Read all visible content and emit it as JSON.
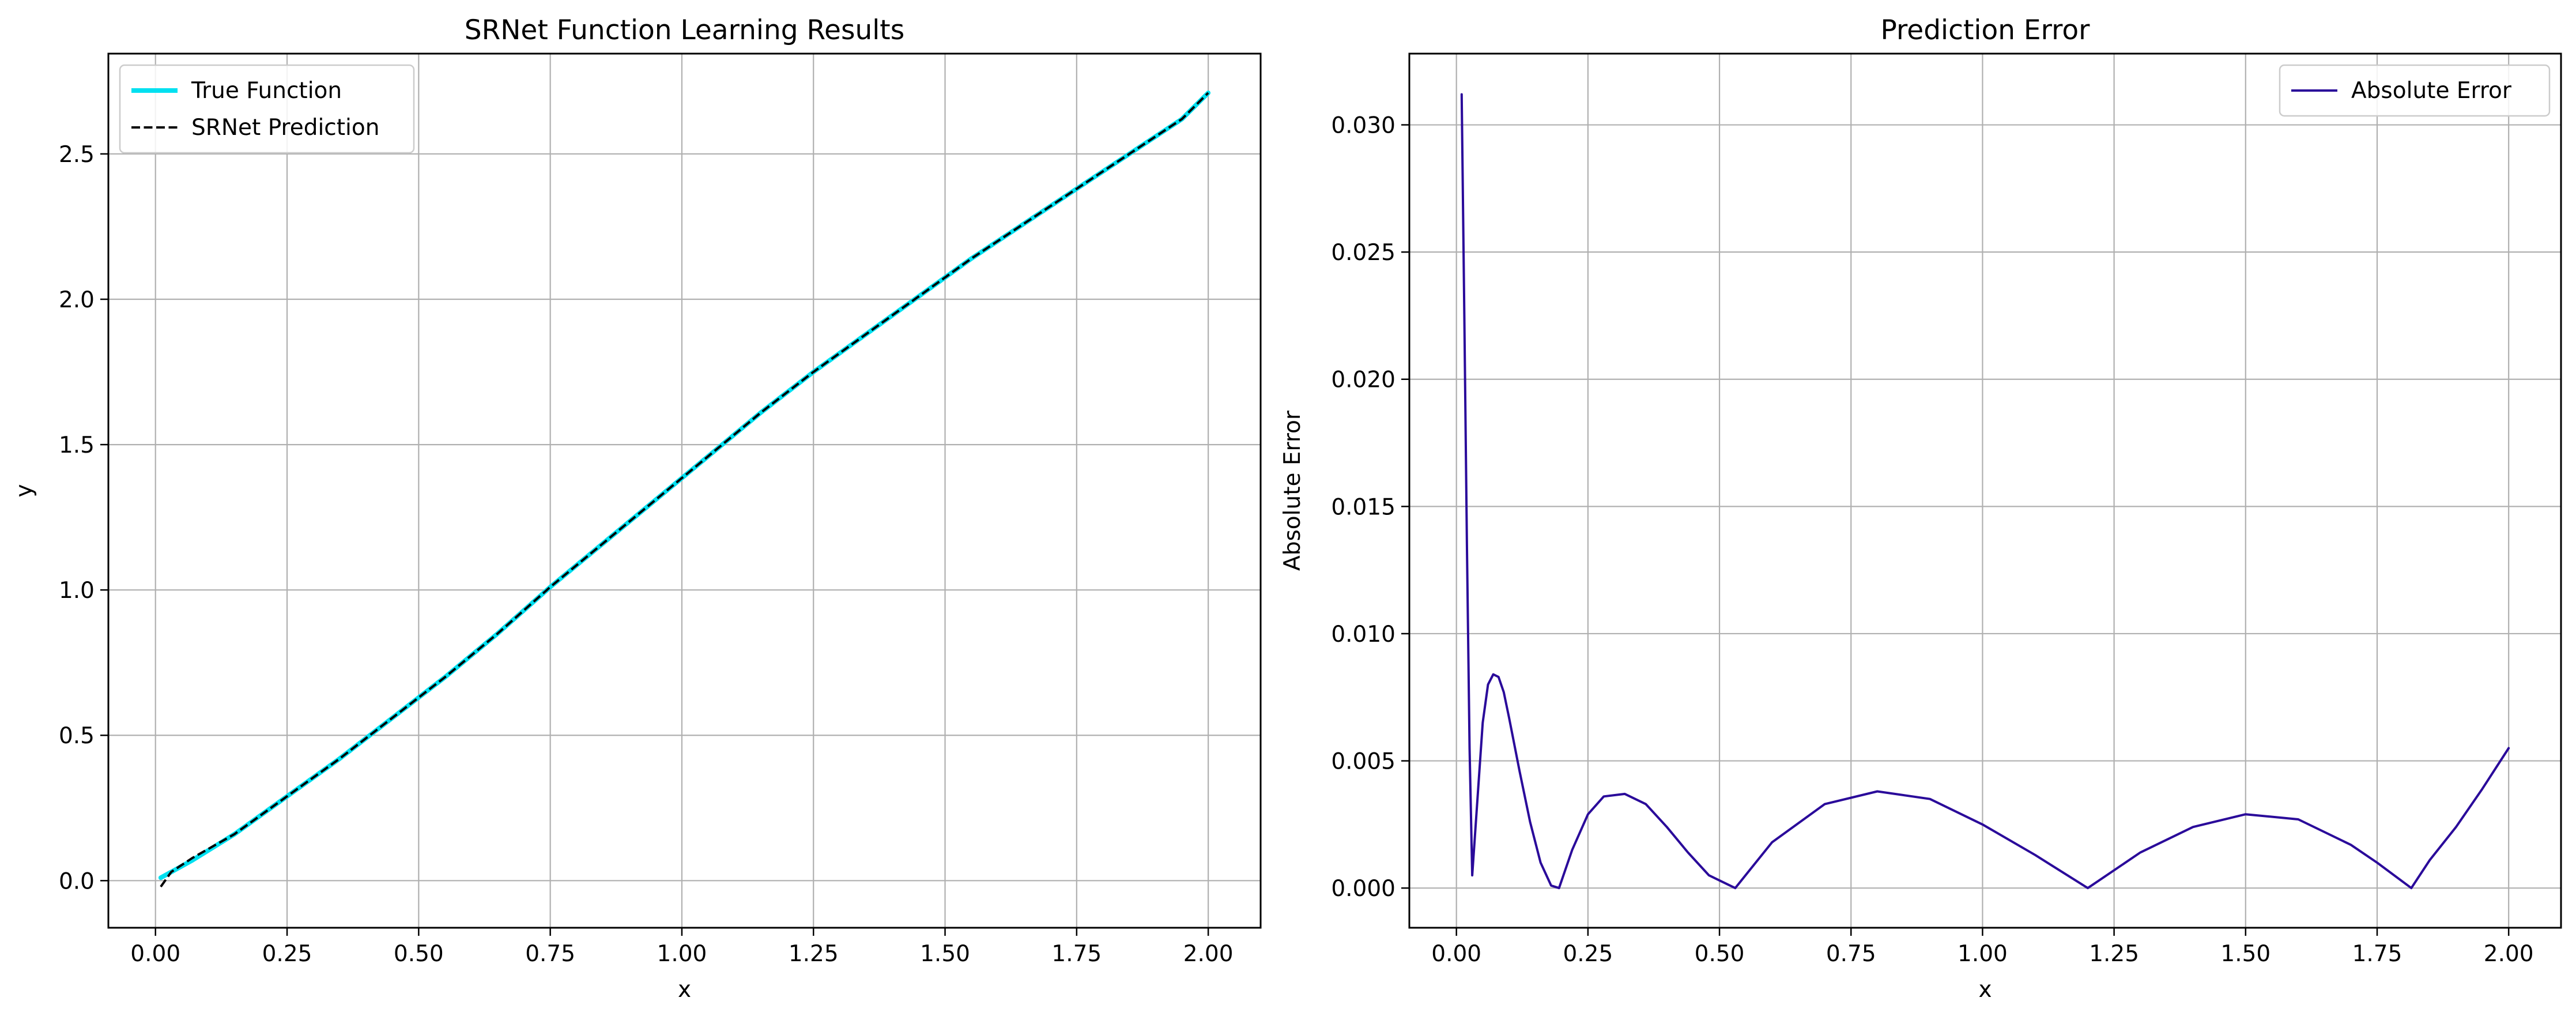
{
  "chart_data": [
    {
      "type": "line",
      "title": "SRNet Function Learning Results",
      "xlabel": "x",
      "ylabel": "y",
      "xlim": [
        -0.0895,
        2.0995
      ],
      "ylim": [
        -0.162,
        2.845
      ],
      "xticks": [
        0.0,
        0.25,
        0.5,
        0.75,
        1.0,
        1.25,
        1.5,
        1.75,
        2.0
      ],
      "xtick_labels": [
        "0.00",
        "0.25",
        "0.50",
        "0.75",
        "1.00",
        "1.25",
        "1.50",
        "1.75",
        "2.00"
      ],
      "yticks": [
        0.0,
        0.5,
        1.0,
        1.5,
        2.0,
        2.5
      ],
      "ytick_labels": [
        "0.0",
        "0.5",
        "1.0",
        "1.5",
        "2.0",
        "2.5"
      ],
      "grid": true,
      "legend_position": "upper-left",
      "series": [
        {
          "name": "True Function",
          "color": "#00e0f0",
          "style": "solid",
          "x": [
            0.01,
            0.03,
            0.07,
            0.15,
            0.25,
            0.35,
            0.45,
            0.55,
            0.65,
            0.75,
            0.85,
            0.95,
            1.05,
            1.15,
            1.25,
            1.35,
            1.45,
            1.55,
            1.65,
            1.75,
            1.85,
            1.95,
            2.0
          ],
          "y": [
            0.01,
            0.03,
            0.07,
            0.16,
            0.29,
            0.42,
            0.56,
            0.7,
            0.85,
            1.01,
            1.16,
            1.31,
            1.46,
            1.61,
            1.75,
            1.88,
            2.01,
            2.14,
            2.26,
            2.38,
            2.5,
            2.62,
            2.71
          ]
        },
        {
          "name": "SRNet Prediction",
          "color": "#000000",
          "style": "dashed",
          "x": [
            0.01,
            0.03,
            0.07,
            0.15,
            0.25,
            0.35,
            0.45,
            0.55,
            0.65,
            0.75,
            0.85,
            0.95,
            1.05,
            1.15,
            1.25,
            1.35,
            1.45,
            1.55,
            1.65,
            1.75,
            1.85,
            1.95,
            2.0
          ],
          "y": [
            -0.021,
            0.03,
            0.078,
            0.16,
            0.29,
            0.42,
            0.56,
            0.7,
            0.85,
            1.01,
            1.16,
            1.31,
            1.46,
            1.61,
            1.75,
            1.88,
            2.01,
            2.14,
            2.26,
            2.38,
            2.5,
            2.62,
            2.71
          ]
        }
      ]
    },
    {
      "type": "line",
      "title": "Prediction Error",
      "xlabel": "x",
      "ylabel": "Absolute Error",
      "xlim": [
        -0.0895,
        2.0995
      ],
      "ylim": [
        -0.00156,
        0.0328
      ],
      "xticks": [
        0.0,
        0.25,
        0.5,
        0.75,
        1.0,
        1.25,
        1.5,
        1.75,
        2.0
      ],
      "xtick_labels": [
        "0.00",
        "0.25",
        "0.50",
        "0.75",
        "1.00",
        "1.25",
        "1.50",
        "1.75",
        "2.00"
      ],
      "yticks": [
        0.0,
        0.005,
        0.01,
        0.015,
        0.02,
        0.025,
        0.03
      ],
      "ytick_labels": [
        "0.000",
        "0.005",
        "0.010",
        "0.015",
        "0.020",
        "0.025",
        "0.030"
      ],
      "grid": true,
      "legend_position": "upper-right",
      "series": [
        {
          "name": "Absolute Error",
          "color": "#2a0a9a",
          "style": "solid",
          "x": [
            0.01,
            0.015,
            0.02,
            0.025,
            0.03,
            0.04,
            0.05,
            0.06,
            0.07,
            0.08,
            0.09,
            0.1,
            0.12,
            0.14,
            0.16,
            0.18,
            0.195,
            0.22,
            0.25,
            0.28,
            0.32,
            0.36,
            0.4,
            0.44,
            0.48,
            0.53,
            0.6,
            0.7,
            0.8,
            0.9,
            1.0,
            1.1,
            1.2,
            1.3,
            1.4,
            1.5,
            1.6,
            1.7,
            1.75,
            1.815,
            1.85,
            1.9,
            1.95,
            2.0
          ],
          "y": [
            0.0312,
            0.0225,
            0.0135,
            0.0055,
            0.0005,
            0.0035,
            0.0065,
            0.008,
            0.0084,
            0.0083,
            0.0077,
            0.0067,
            0.0046,
            0.0026,
            0.001,
            0.0001,
            0.0,
            0.0015,
            0.0029,
            0.0036,
            0.0037,
            0.0033,
            0.0024,
            0.0014,
            0.0005,
            0.0,
            0.0018,
            0.0033,
            0.0038,
            0.0035,
            0.0025,
            0.0013,
            0.0,
            0.0014,
            0.0024,
            0.0029,
            0.0027,
            0.0017,
            0.001,
            0.0,
            0.0011,
            0.0024,
            0.0039,
            0.0055
          ]
        }
      ]
    }
  ]
}
